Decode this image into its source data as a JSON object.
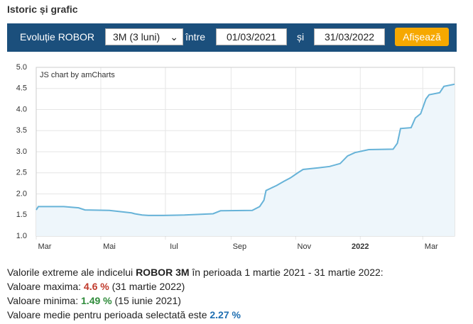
{
  "header": {
    "title": "Istoric și grafic"
  },
  "form": {
    "label": "Evoluție ROBOR",
    "select": "3M (3 luni)",
    "between": "între",
    "from": "01/03/2021",
    "and": "și",
    "to": "31/03/2022",
    "button": "Afișează"
  },
  "chart_data": {
    "type": "area",
    "watermark": "JS chart by amCharts",
    "color": "#67b3d8",
    "fill": "#eef6fb",
    "grid": true,
    "x": [
      0,
      2,
      26,
      40,
      46,
      69,
      90,
      93,
      100,
      106,
      120,
      140,
      167,
      174,
      204,
      211,
      215,
      217,
      227,
      234,
      240,
      247,
      252,
      267,
      277,
      287,
      294,
      301,
      314,
      337,
      341,
      344,
      354,
      358,
      363,
      368,
      371,
      381,
      385,
      395
    ],
    "values": [
      1.62,
      1.7,
      1.7,
      1.67,
      1.62,
      1.61,
      1.55,
      1.53,
      1.5,
      1.49,
      1.49,
      1.5,
      1.53,
      1.6,
      1.61,
      1.7,
      1.85,
      2.08,
      2.2,
      2.3,
      2.38,
      2.5,
      2.58,
      2.62,
      2.65,
      2.72,
      2.9,
      2.98,
      3.05,
      3.06,
      3.2,
      3.55,
      3.57,
      3.8,
      3.9,
      4.25,
      4.35,
      4.4,
      4.55,
      4.6
    ],
    "xlim": [
      0,
      395
    ],
    "xticks": [
      {
        "value": 0,
        "label": "Mar"
      },
      {
        "value": 61,
        "label": "Mai"
      },
      {
        "value": 122,
        "label": "Iul"
      },
      {
        "value": 184,
        "label": "Sep"
      },
      {
        "value": 245,
        "label": "Nov"
      },
      {
        "value": 306,
        "label": "2022"
      },
      {
        "value": 365,
        "label": "Mar"
      }
    ],
    "ylim": [
      1,
      5
    ],
    "yticks": [
      {
        "value": 1,
        "label": "1.0"
      },
      1.5,
      {
        "value": 2,
        "label": "2.0"
      },
      2.5,
      {
        "value": 3,
        "label": "3.0"
      },
      3.5,
      {
        "value": 4,
        "label": "4.0"
      },
      4.5,
      {
        "value": 5,
        "label": "5.0"
      }
    ]
  },
  "summary": {
    "intro": "Valorile extreme ale indicelui",
    "index": "ROBOR 3M",
    "period": "în perioada 1 martie 2021 - 31 martie 2022:",
    "max_label": "Valoare maxima:",
    "max_value": "4.6 %",
    "max_date": "(31 martie 2022)",
    "min_label": "Valoare minima:",
    "min_value": "1.49 %",
    "min_date": "(15 iunie 2021)",
    "avg_label": "Valoare medie pentru perioada selectată este",
    "avg_value": "2.27 %"
  }
}
